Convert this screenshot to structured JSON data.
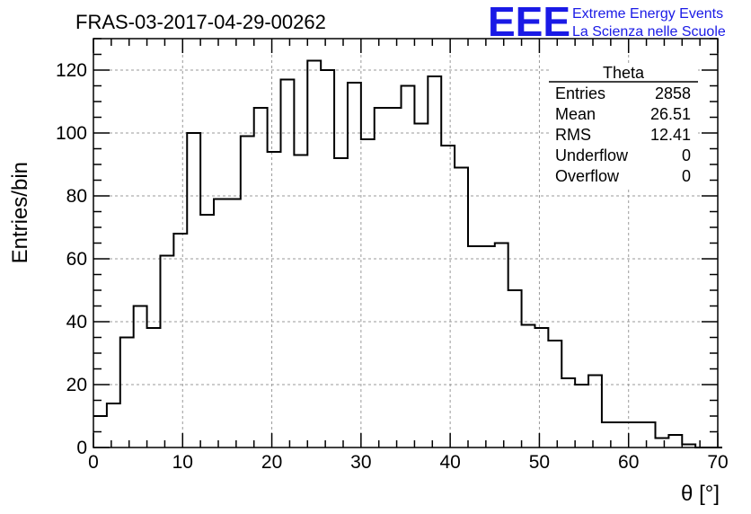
{
  "chart_data": {
    "type": "histogram",
    "title": "FRAS-03-2017-04-29-00262",
    "xlabel": "θ [°]",
    "ylabel": "Entries/bin",
    "xlim": [
      0,
      70
    ],
    "ylim": [
      0,
      130
    ],
    "bin_width": 1.5,
    "x_ticks": [
      "0",
      "10",
      "20",
      "30",
      "40",
      "50",
      "60",
      "70"
    ],
    "y_ticks": [
      "0",
      "20",
      "40",
      "60",
      "80",
      "100",
      "120"
    ],
    "bin_start": 0,
    "counts": [
      10,
      14,
      35,
      45,
      38,
      61,
      68,
      100,
      74,
      79,
      79,
      99,
      108,
      94,
      117,
      93,
      123,
      120,
      92,
      116,
      98,
      108,
      108,
      115,
      103,
      118,
      96,
      89,
      64,
      64,
      65,
      50,
      39,
      38,
      34,
      22,
      20,
      23,
      8,
      8,
      8,
      8,
      3,
      4,
      1,
      0,
      0
    ],
    "grid": true,
    "legend": "none",
    "stats_box": {
      "name": "Theta",
      "rows": [
        {
          "label": "Entries",
          "value": "2858"
        },
        {
          "label": "Mean",
          "value": "26.51"
        },
        {
          "label": "RMS",
          "value": "12.41"
        },
        {
          "label": "Underflow",
          "value": "0"
        },
        {
          "label": "Overflow",
          "value": "0"
        }
      ]
    }
  },
  "logo": {
    "text": "EEE",
    "line1": "Extreme Energy Events",
    "line2": "La Scienza nelle Scuole",
    "color": "#1a1ae6"
  }
}
